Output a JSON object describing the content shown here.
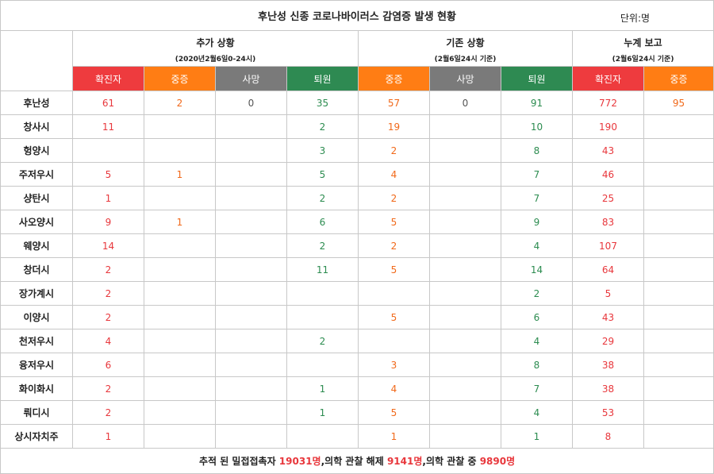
{
  "title": "후난성 신종 코로나바이러스 감염증 발생 현황",
  "unit": "단위:명",
  "groups": [
    {
      "name": "추가 상황",
      "sub": "(2020년2월6일0-24시)"
    },
    {
      "name": "기존 상황",
      "sub": "(2월6일24시 기준)"
    },
    {
      "name": "누계 보고",
      "sub": "(2월6일24시 기준)"
    }
  ],
  "headers": [
    "확진자",
    "중증",
    "사망",
    "퇴원",
    "중증",
    "사망",
    "퇴원",
    "확진자",
    "중증"
  ],
  "colors": {
    "red": "#ee3b3e",
    "orange": "#ff7d14",
    "gray": "#7a7a7a",
    "green": "#2e8a52"
  },
  "rows": [
    {
      "region": "후난성",
      "v": [
        "61",
        "2",
        "0",
        "35",
        "57",
        "0",
        "91",
        "772",
        "95"
      ]
    },
    {
      "region": "창사시",
      "v": [
        "11",
        "",
        "",
        "2",
        "19",
        "",
        "10",
        "190",
        ""
      ]
    },
    {
      "region": "헝양시",
      "v": [
        "",
        "",
        "",
        "3",
        "2",
        "",
        "8",
        "43",
        ""
      ]
    },
    {
      "region": "주저우시",
      "v": [
        "5",
        "1",
        "",
        "5",
        "4",
        "",
        "7",
        "46",
        ""
      ]
    },
    {
      "region": "샹탄시",
      "v": [
        "1",
        "",
        "",
        "2",
        "2",
        "",
        "7",
        "25",
        ""
      ]
    },
    {
      "region": "사오양시",
      "v": [
        "9",
        "1",
        "",
        "6",
        "5",
        "",
        "9",
        "83",
        ""
      ]
    },
    {
      "region": "웨양시",
      "v": [
        "14",
        "",
        "",
        "2",
        "2",
        "",
        "4",
        "107",
        ""
      ]
    },
    {
      "region": "창더시",
      "v": [
        "2",
        "",
        "",
        "11",
        "5",
        "",
        "14",
        "64",
        ""
      ]
    },
    {
      "region": "장가계시",
      "v": [
        "2",
        "",
        "",
        "",
        "",
        "",
        "2",
        "5",
        ""
      ]
    },
    {
      "region": "이양시",
      "v": [
        "2",
        "",
        "",
        "",
        "5",
        "",
        "6",
        "43",
        ""
      ]
    },
    {
      "region": "천저우시",
      "v": [
        "4",
        "",
        "",
        "2",
        "",
        "",
        "4",
        "29",
        ""
      ]
    },
    {
      "region": "융저우시",
      "v": [
        "6",
        "",
        "",
        "",
        "3",
        "",
        "8",
        "38",
        ""
      ]
    },
    {
      "region": "화이화시",
      "v": [
        "2",
        "",
        "",
        "1",
        "4",
        "",
        "7",
        "38",
        ""
      ]
    },
    {
      "region": "뤄디시",
      "v": [
        "2",
        "",
        "",
        "1",
        "5",
        "",
        "4",
        "53",
        ""
      ]
    },
    {
      "region": "상시자치주",
      "v": [
        "1",
        "",
        "",
        "",
        "1",
        "",
        "1",
        "8",
        ""
      ]
    }
  ],
  "footer": {
    "p1": "추적 된 밀접접촉자 ",
    "n1": "19031명",
    "p2": ",의학 관찰 해제 ",
    "n2": "9141명",
    "p3": ",의학 관찰 중 ",
    "n3": "9890명"
  }
}
